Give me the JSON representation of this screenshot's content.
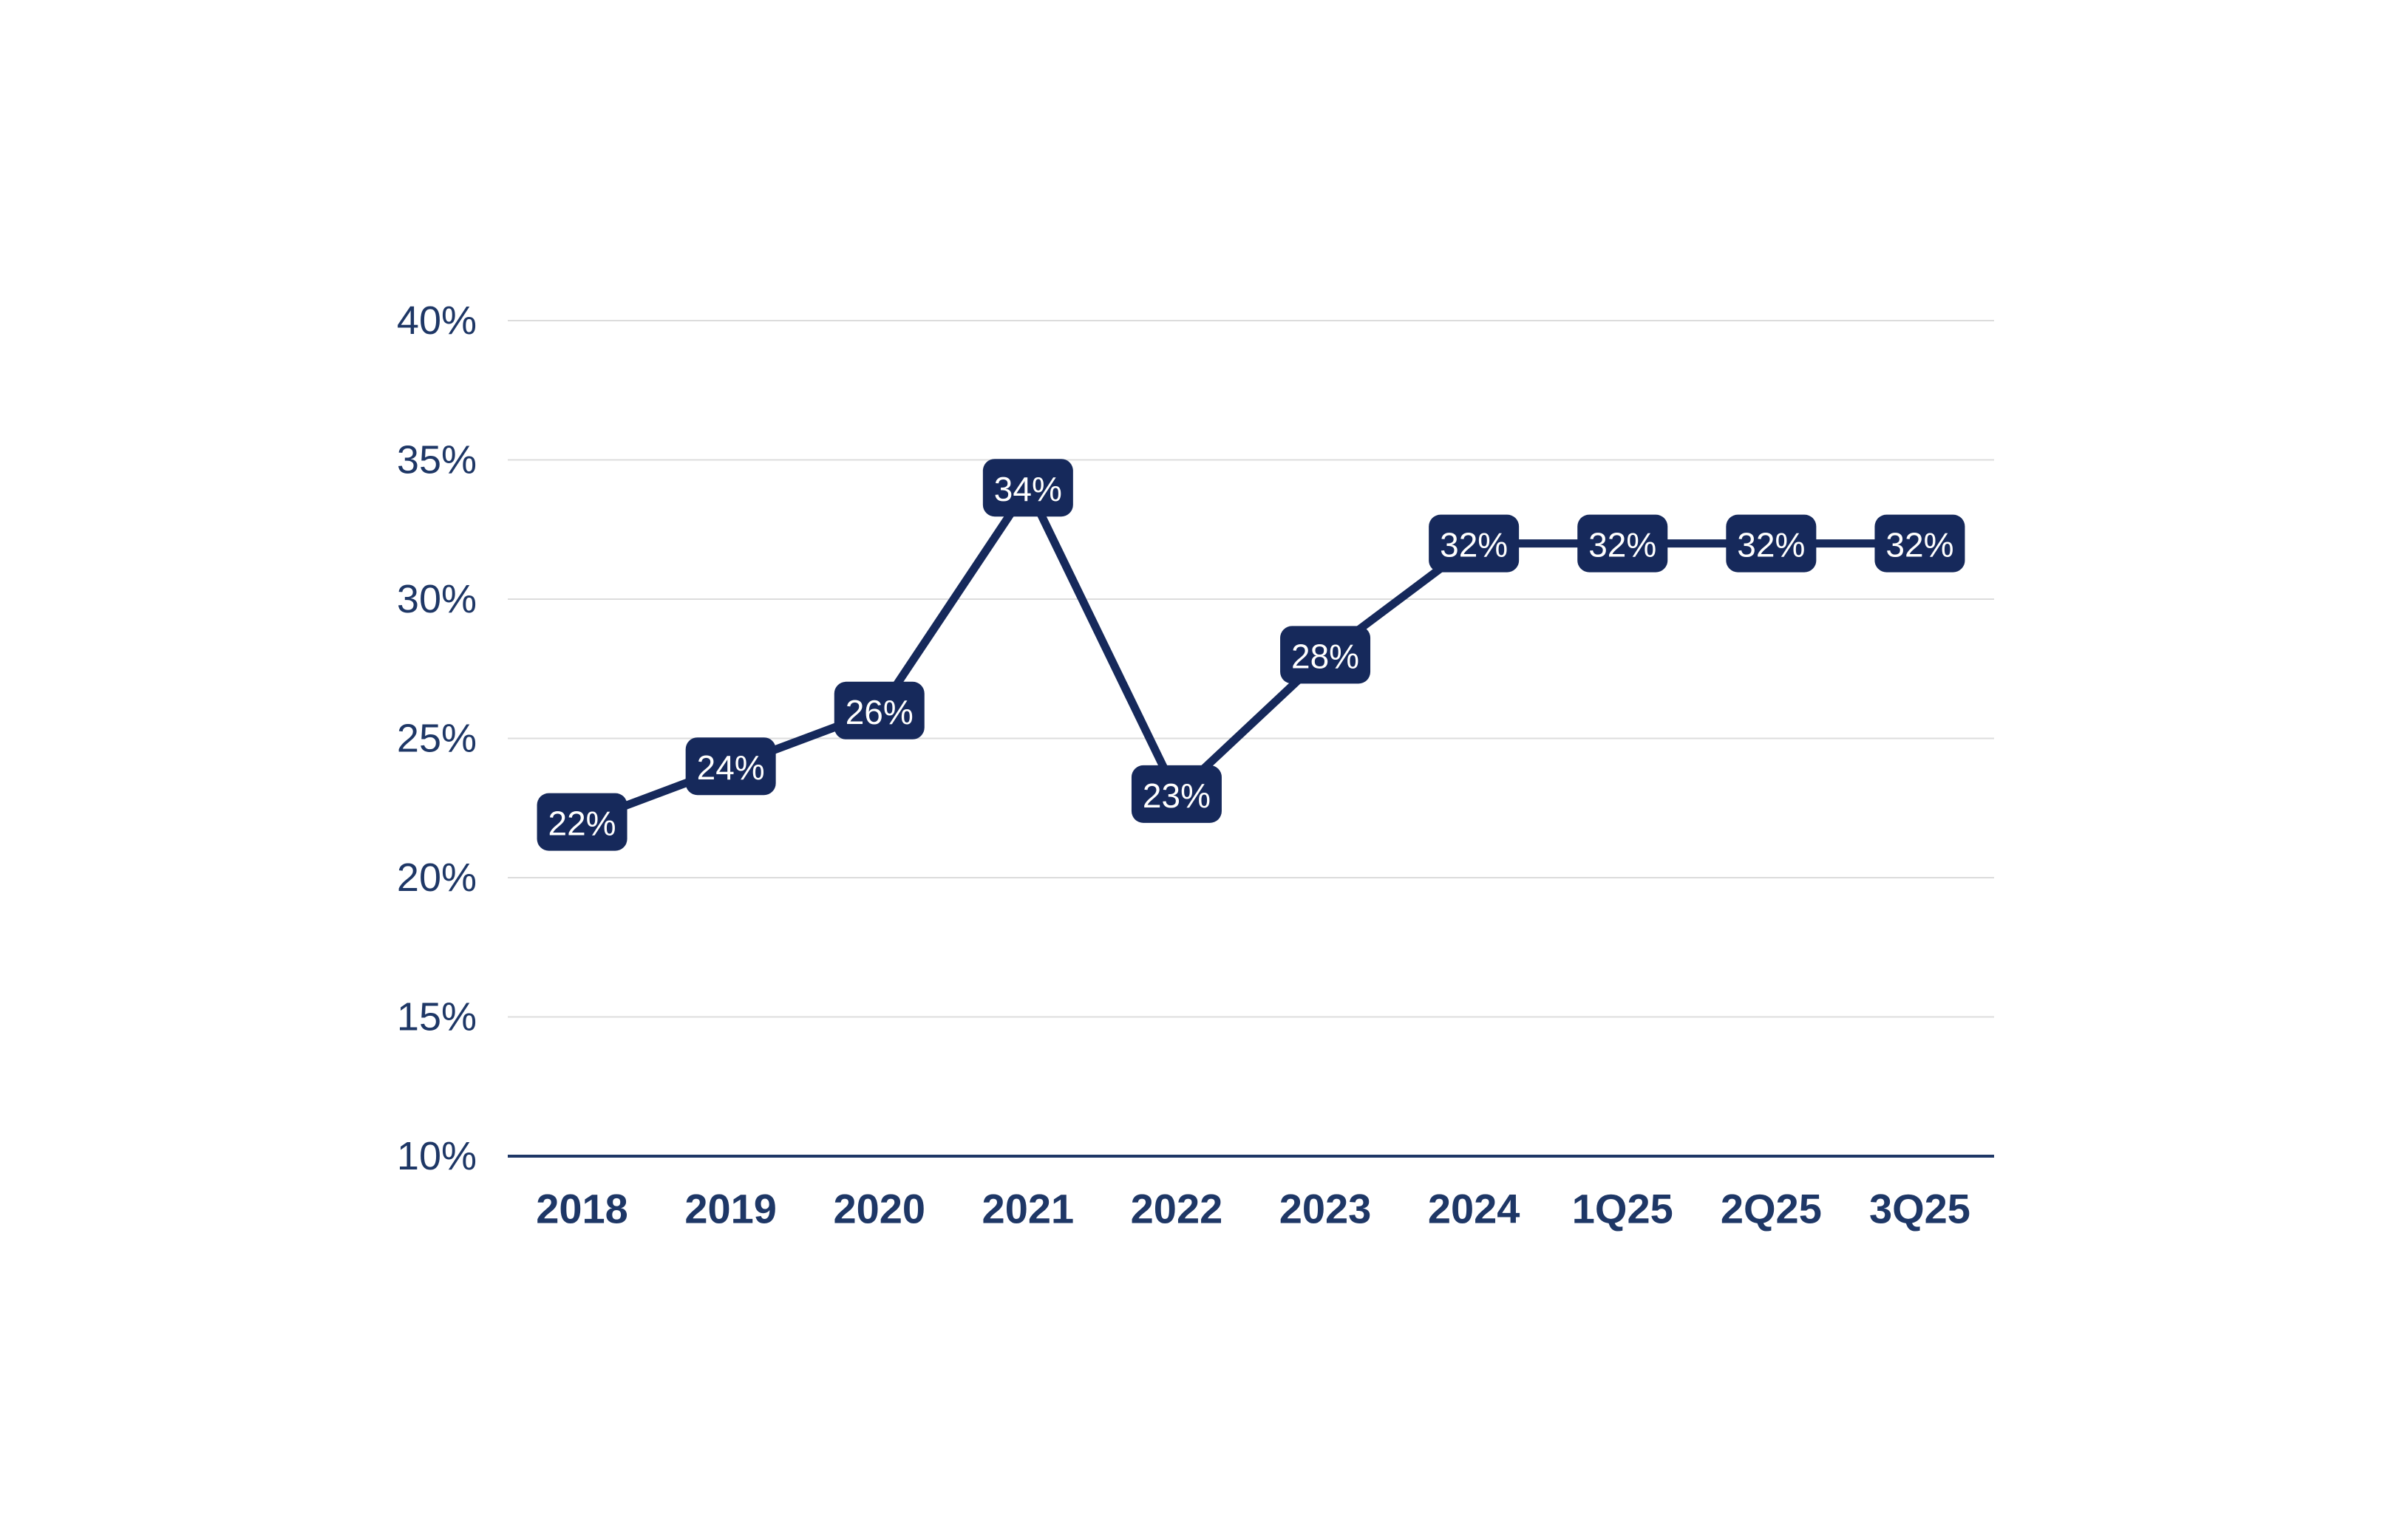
{
  "chart_data": {
    "type": "line",
    "title": "",
    "xlabel": "",
    "ylabel": "",
    "categories": [
      "2018",
      "2019",
      "2020",
      "2021",
      "2022",
      "2023",
      "2024",
      "1Q25",
      "2Q25",
      "3Q25"
    ],
    "values": [
      22,
      24,
      26,
      34,
      23,
      28,
      32,
      32,
      32,
      32
    ],
    "data_labels": [
      "22%",
      "24%",
      "26%",
      "34%",
      "23%",
      "28%",
      "32%",
      "32%",
      "32%",
      "32%"
    ],
    "ylim": [
      10,
      40
    ],
    "y_ticks": [
      10,
      15,
      20,
      25,
      30,
      35,
      40
    ],
    "y_tick_labels": [
      "10%",
      "15%",
      "20%",
      "25%",
      "30%",
      "35%",
      "40%"
    ],
    "grid": "horizontal",
    "legend": "none",
    "colors": {
      "line": "#16295B",
      "label_box": "#16295B",
      "label_text": "#FFFFFF",
      "axis_text": "#1E3766",
      "axis_line": "#1E3766",
      "gridline": "#DCDCDC",
      "background": "#FFFFFF"
    }
  }
}
